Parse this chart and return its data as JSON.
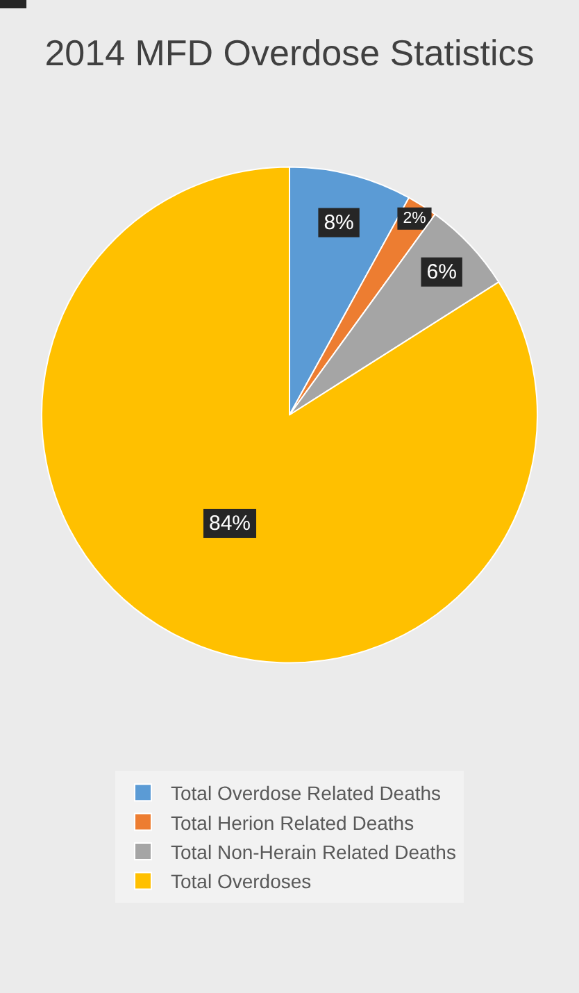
{
  "chart_data": {
    "type": "pie",
    "title": "2014 MFD Overdose Statistics",
    "categories": [
      "Total Overdose Related Deaths",
      "Total Herion Related Deaths",
      "Total Non-Herain Related Deaths",
      "Total Overdoses"
    ],
    "values": [
      8,
      2,
      6,
      84
    ],
    "value_labels": [
      "8%",
      "2%",
      "6%",
      "84%"
    ],
    "colors": [
      "#5b9bd5",
      "#ed7d31",
      "#a5a5a5",
      "#ffc000"
    ],
    "legend": "bottom"
  }
}
